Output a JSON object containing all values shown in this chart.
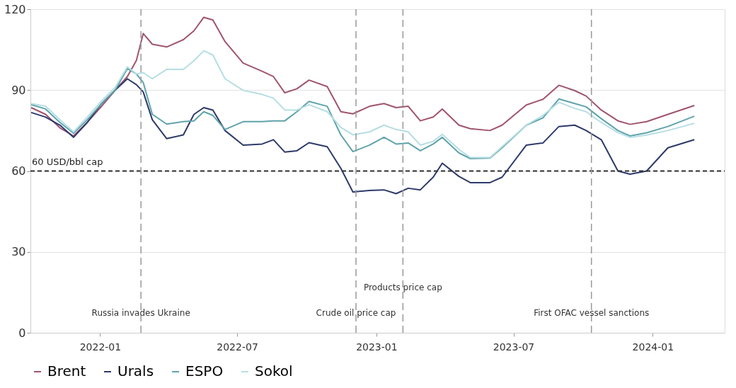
{
  "chart_data": {
    "type": "line",
    "x": [
      "2021-10-02",
      "2021-10-21",
      "2021-11-09",
      "2021-11-27",
      "2021-12-15",
      "2022-01-03",
      "2022-01-21",
      "2022-02-06",
      "2022-02-18",
      "2022-02-27",
      "2022-03-11",
      "2022-03-30",
      "2022-04-21",
      "2022-05-05",
      "2022-05-18",
      "2022-05-30",
      "2022-06-15",
      "2022-07-09",
      "2022-08-03",
      "2022-08-18",
      "2022-09-02",
      "2022-09-18",
      "2022-10-04",
      "2022-10-28",
      "2022-11-15",
      "2022-12-01",
      "2022-12-23",
      "2023-01-11",
      "2023-01-27",
      "2023-02-12",
      "2023-02-28",
      "2023-03-17",
      "2023-03-29",
      "2023-04-20",
      "2023-05-05",
      "2023-05-31",
      "2023-06-16",
      "2023-07-18",
      "2023-08-09",
      "2023-08-30",
      "2023-09-20",
      "2023-10-05",
      "2023-10-25",
      "2023-11-16",
      "2023-12-02",
      "2023-12-24",
      "2024-01-21",
      "2024-02-25"
    ],
    "series": [
      {
        "name": "Brent",
        "color": "#a0546f",
        "values": [
          83.5,
          81,
          76,
          73,
          78,
          84,
          90,
          95,
          101,
          111,
          107,
          106,
          108.7,
          112,
          117,
          116,
          108,
          100,
          97,
          95,
          89,
          90.5,
          93.7,
          91.3,
          82,
          81.2,
          84,
          85,
          83.5,
          84,
          78.6,
          80,
          83,
          77,
          75.7,
          75,
          77,
          84.5,
          86.6,
          91.8,
          89.8,
          87.8,
          82.6,
          78.6,
          77.3,
          78.3,
          81,
          84.3
        ]
      },
      {
        "name": "Urals",
        "color": "#2d3a6b",
        "values": [
          81.7,
          80,
          77,
          72.5,
          78,
          85,
          90,
          94.2,
          92,
          89.3,
          79,
          72,
          73.4,
          81,
          83.5,
          82.6,
          75,
          69.6,
          70,
          71.6,
          67,
          67.5,
          70.5,
          69,
          61,
          52.2,
          52.8,
          53,
          51.6,
          53.6,
          53,
          57.7,
          62.9,
          58,
          55.7,
          55.7,
          57.7,
          69.6,
          70.4,
          76.5,
          77,
          75,
          71.6,
          60,
          58.8,
          60,
          68.6,
          71.6
        ]
      },
      {
        "name": "ESPO",
        "color": "#5fa3ab",
        "values": [
          84.6,
          83,
          78,
          74,
          79,
          85,
          90,
          98,
          96,
          92.8,
          81,
          77.4,
          78.3,
          78.6,
          82,
          80.6,
          75.4,
          78.3,
          78.3,
          78.6,
          78.6,
          82,
          85.8,
          84,
          73.4,
          67.2,
          69.6,
          72.5,
          70,
          70.4,
          67.5,
          70,
          72.5,
          66.7,
          64.6,
          64.8,
          68.6,
          77,
          79.7,
          86.7,
          85,
          83.8,
          79.4,
          75,
          73,
          74.2,
          76.5,
          80.3
        ]
      },
      {
        "name": "Sokol",
        "color": "#b5dee3",
        "values": [
          85,
          84,
          79,
          74.5,
          80,
          86,
          91,
          98.6,
          96,
          96.5,
          94.2,
          97.7,
          97.7,
          100.9,
          104.6,
          103,
          94.2,
          89.9,
          88.4,
          87,
          82.6,
          82.6,
          84.6,
          82,
          76.2,
          73.4,
          74.5,
          77,
          75.4,
          74.5,
          69.6,
          71,
          73.6,
          68,
          65,
          65,
          69,
          77,
          80.6,
          85.5,
          83.2,
          82,
          78,
          74.2,
          72.5,
          73.3,
          75,
          77.7
        ]
      }
    ],
    "xlim": [
      "2021-10-01",
      "2024-04-05"
    ],
    "xticks": [
      {
        "value": "2022-01-01",
        "label": "2022-01"
      },
      {
        "value": "2022-07-01",
        "label": "2022-07"
      },
      {
        "value": "2023-01-01",
        "label": "2023-01"
      },
      {
        "value": "2023-07-01",
        "label": "2023-07"
      },
      {
        "value": "2024-01-01",
        "label": "2024-01"
      }
    ],
    "ylim": [
      0,
      120
    ],
    "yticks": [
      0,
      30,
      60,
      90,
      120
    ],
    "ref_lines": [
      {
        "axis": "y",
        "value": 60,
        "label": "60 USD/bbl cap",
        "color": "#333333",
        "line_style": "dashed"
      },
      {
        "axis": "x",
        "value": "2022-02-24",
        "label": "Russia invades Ukraine",
        "color": "#999999",
        "line_style": "dashed"
      },
      {
        "axis": "x",
        "value": "2022-12-05",
        "label": "Crude oil price cap",
        "color": "#999999",
        "line_style": "dashed"
      },
      {
        "axis": "x",
        "value": "2023-02-05",
        "label": "Products price cap",
        "color": "#999999",
        "line_style": "dashed"
      },
      {
        "axis": "x",
        "value": "2023-10-12",
        "label": "First OFAC vessel sanctions",
        "color": "#999999",
        "line_style": "dashed"
      }
    ],
    "grid": "y",
    "legend": "bottom",
    "line_style": "solid"
  }
}
